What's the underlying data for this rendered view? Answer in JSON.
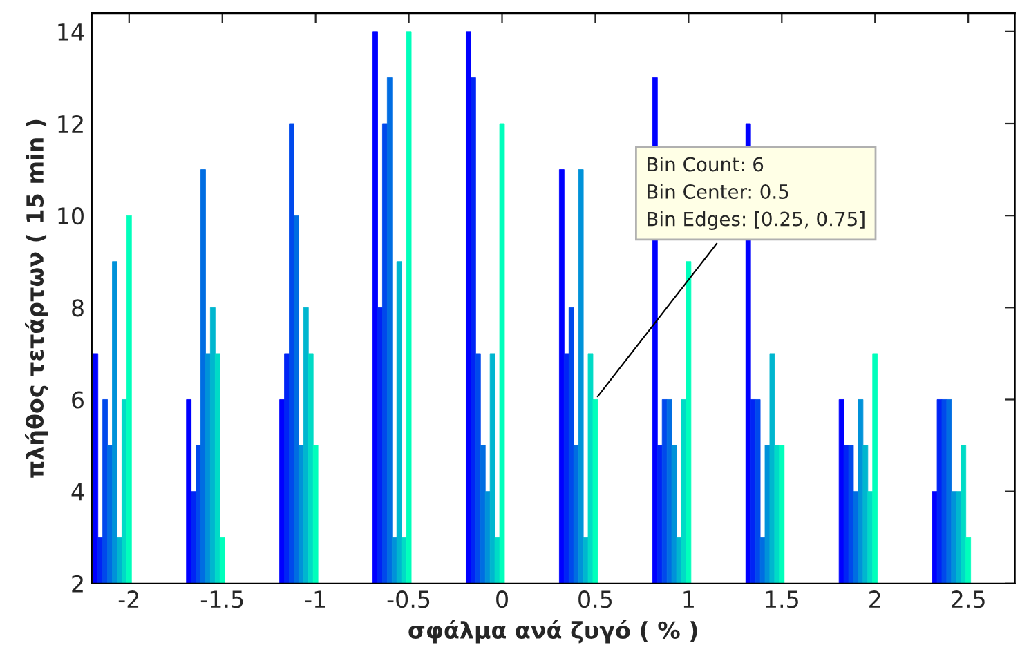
{
  "chart_data": {
    "type": "bar",
    "xlabel": "σφάλμα ανά ζυγό ( % )",
    "ylabel": "πλήθος τετάρτων ( 15 min )",
    "x": [
      -2,
      -1.5,
      -1,
      -0.5,
      0,
      0.5,
      1,
      1.5,
      2,
      2.5
    ],
    "series": [
      {
        "color": "#0000ff",
        "values": [
          7,
          6,
          6,
          14,
          14,
          11,
          13,
          12,
          6,
          4
        ]
      },
      {
        "color": "#0024f5",
        "values": [
          3,
          4,
          7,
          8,
          13,
          7,
          5,
          6,
          5,
          6
        ]
      },
      {
        "color": "#0049ec",
        "values": [
          6,
          5,
          12,
          12,
          7,
          8,
          6,
          6,
          5,
          6
        ]
      },
      {
        "color": "#006de2",
        "values": [
          5,
          11,
          10,
          13,
          5,
          5,
          6,
          3,
          4,
          6
        ]
      },
      {
        "color": "#0092d9",
        "values": [
          9,
          7,
          5,
          3,
          4,
          11,
          5,
          5,
          6,
          4
        ]
      },
      {
        "color": "#00b6cf",
        "values": [
          3,
          8,
          8,
          9,
          7,
          3,
          3,
          7,
          5,
          4
        ]
      },
      {
        "color": "#00dbc6",
        "values": [
          6,
          7,
          7,
          3,
          3,
          7,
          6,
          5,
          4,
          5
        ]
      },
      {
        "color": "#00ffbc",
        "values": [
          10,
          3,
          5,
          14,
          12,
          6,
          9,
          5,
          7,
          3
        ]
      }
    ],
    "xlim": [
      -2.2,
      2.75
    ],
    "xticks": [
      -2,
      -1.5,
      -1,
      -0.5,
      0,
      0.5,
      1,
      1.5,
      2,
      2.5
    ],
    "ylim": [
      2,
      14.4
    ],
    "yticks": [
      2,
      4,
      6,
      8,
      10,
      12,
      14
    ],
    "annotations": [
      {
        "text": "Bin Count: 6\nBin Center: 0.5\nBin Edges: [0.25, 0.75]",
        "x": 0.5,
        "y": 6
      }
    ]
  }
}
